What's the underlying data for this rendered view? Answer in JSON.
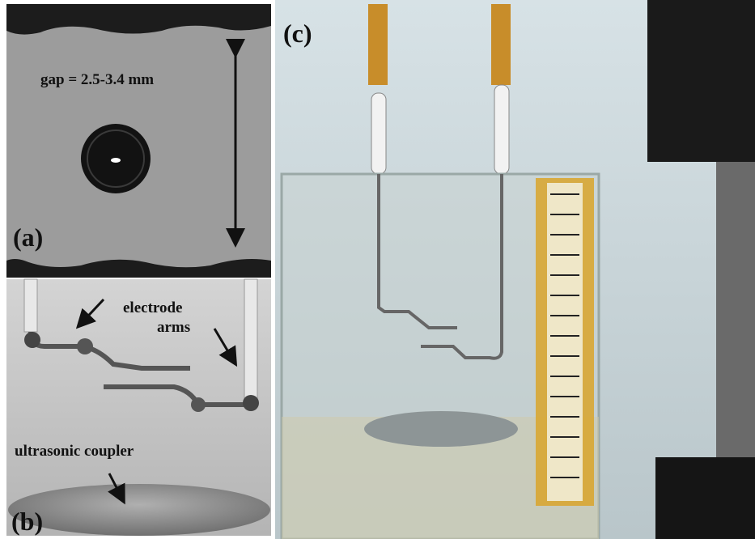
{
  "panels": [
    {
      "label": "(a)",
      "annotations": [
        "gap = 2.5-3.4 mm"
      ]
    },
    {
      "label": "(b)",
      "annotations": [
        "electrode",
        "arms",
        "ultrasonic coupler"
      ]
    },
    {
      "label": "(c)"
    }
  ]
}
